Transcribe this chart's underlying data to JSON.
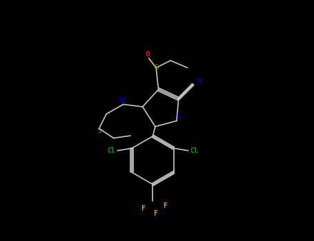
{
  "bg_color": "#000000",
  "fig_width": 4.55,
  "fig_height": 3.5,
  "dpi": 100,
  "atom_colors": {
    "C": "#000000",
    "N": "#0000CD",
    "S": "#808000",
    "O": "#FF0000",
    "Cl": "#00AA00",
    "F": "#DAA520",
    "bond": "#404040"
  },
  "line_color": "#404040",
  "line_width": 1.2
}
